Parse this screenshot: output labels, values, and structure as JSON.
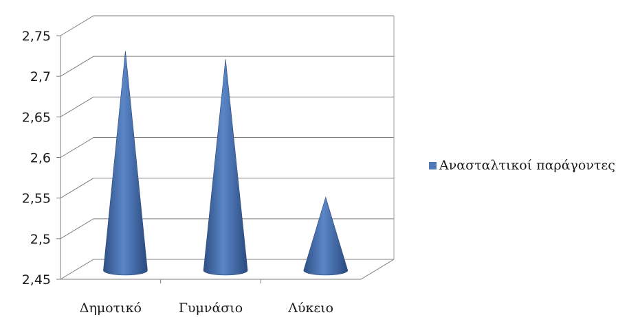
{
  "chart_data": {
    "type": "bar",
    "style": "3d-cone",
    "categories": [
      "Δημοτικό",
      "Γυμνάσιο",
      "Λύκειο"
    ],
    "series": [
      {
        "name": "Ανασταλτικοί παράγοντες",
        "values": [
          2.72,
          2.71,
          2.54
        ],
        "color": "#4f79b8"
      }
    ],
    "ylim": [
      2.45,
      2.75
    ],
    "yticks": [
      2.45,
      2.5,
      2.55,
      2.6,
      2.65,
      2.7,
      2.75
    ],
    "ytick_labels": [
      "2,45",
      "2,5",
      "2,55",
      "2,6",
      "2,65",
      "2,7",
      "2,75"
    ],
    "grid": true,
    "legend_position": "right"
  }
}
